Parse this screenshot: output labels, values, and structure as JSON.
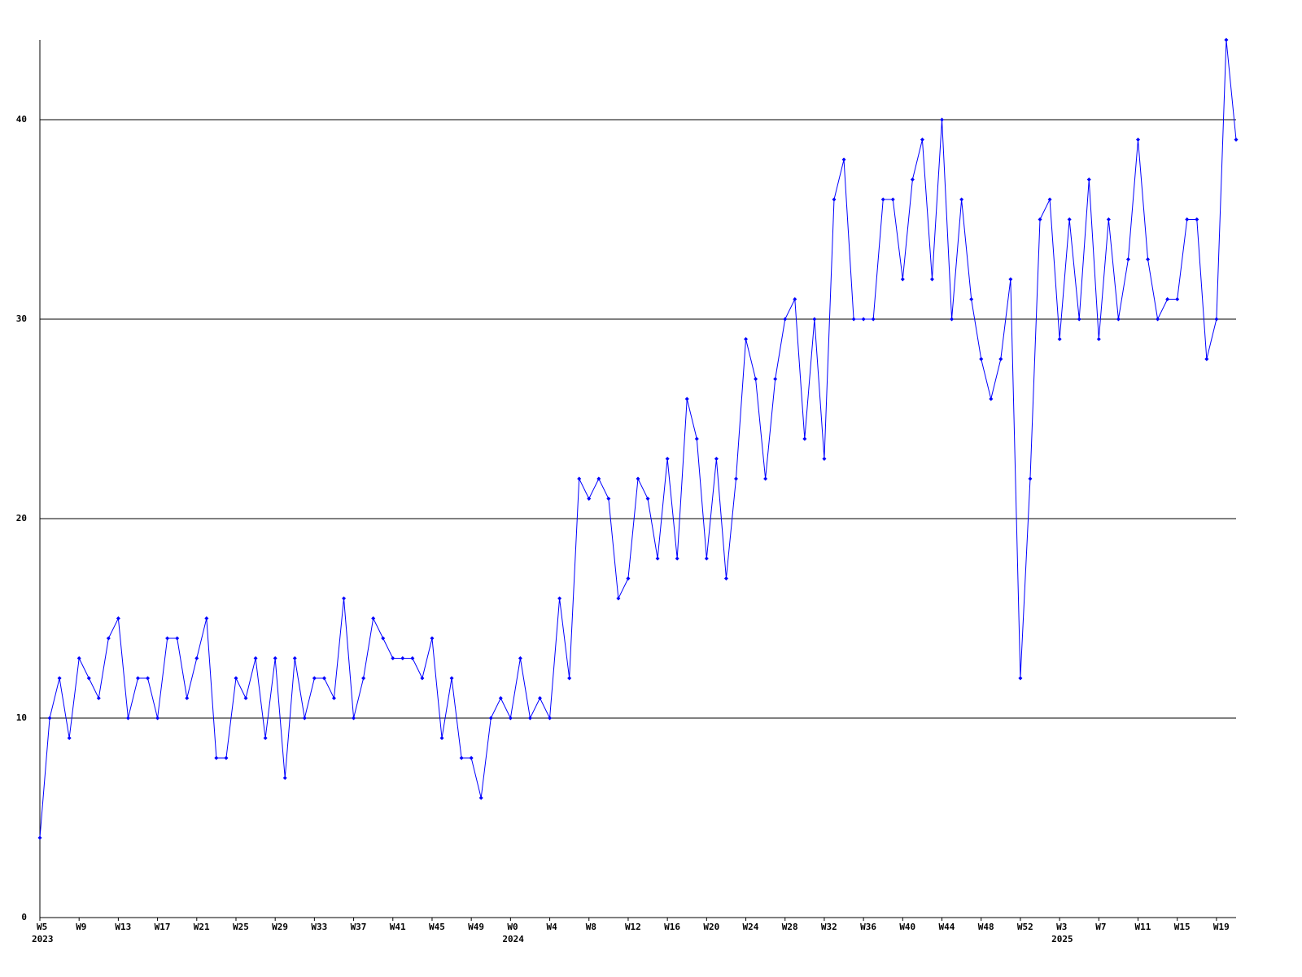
{
  "chart_data": {
    "type": "line",
    "categories": [
      "W5",
      null,
      null,
      null,
      "W9",
      null,
      null,
      null,
      "W13",
      null,
      null,
      null,
      "W17",
      null,
      null,
      null,
      "W21",
      null,
      null,
      null,
      "W25",
      null,
      null,
      null,
      "W29",
      null,
      null,
      null,
      "W33",
      null,
      null,
      null,
      "W37",
      null,
      null,
      null,
      "W41",
      null,
      null,
      null,
      "W45",
      null,
      null,
      null,
      "W49",
      null,
      null,
      null,
      "W0",
      null,
      null,
      null,
      "W4",
      null,
      null,
      null,
      "W8",
      null,
      null,
      null,
      "W12",
      null,
      null,
      null,
      "W16",
      null,
      null,
      null,
      "W20",
      null,
      null,
      null,
      "W24",
      null,
      null,
      null,
      "W28",
      null,
      null,
      null,
      "W32",
      null,
      null,
      null,
      "W36",
      null,
      null,
      null,
      "W40",
      null,
      null,
      null,
      "W44",
      null,
      null,
      null,
      "W48",
      null,
      null,
      null,
      "W52",
      null,
      null,
      null,
      "W3",
      null,
      null,
      null,
      "W7",
      null,
      null,
      null,
      "W11",
      null,
      null,
      null,
      "W15",
      null,
      null,
      null,
      "W19",
      null,
      null
    ],
    "x_group_labels": [
      "2023",
      null,
      null,
      null,
      null,
      null,
      null,
      null,
      null,
      null,
      null,
      null,
      null,
      null,
      null,
      null,
      null,
      null,
      null,
      null,
      null,
      null,
      null,
      null,
      null,
      null,
      null,
      null,
      null,
      null,
      null,
      null,
      null,
      null,
      null,
      null,
      null,
      null,
      null,
      null,
      null,
      null,
      null,
      null,
      null,
      null,
      null,
      null,
      "2024",
      null,
      null,
      null,
      null,
      null,
      null,
      null,
      null,
      null,
      null,
      null,
      null,
      null,
      null,
      null,
      null,
      null,
      null,
      null,
      null,
      null,
      null,
      null,
      null,
      null,
      null,
      null,
      null,
      null,
      null,
      null,
      null,
      null,
      null,
      null,
      null,
      null,
      null,
      null,
      null,
      null,
      null,
      null,
      null,
      null,
      null,
      null,
      null,
      null,
      null,
      null,
      null,
      null,
      null,
      null,
      "2025",
      null,
      null,
      null,
      null,
      null,
      null,
      null,
      null,
      null,
      null,
      null,
      null,
      null,
      null,
      null,
      null,
      null,
      null
    ],
    "values": [
      4,
      10,
      12,
      9,
      13,
      12,
      11,
      14,
      15,
      10,
      12,
      12,
      10,
      14,
      14,
      11,
      13,
      15,
      8,
      8,
      12,
      11,
      13,
      9,
      13,
      7,
      13,
      10,
      12,
      12,
      11,
      16,
      10,
      12,
      15,
      14,
      13,
      13,
      13,
      12,
      14,
      9,
      12,
      8,
      8,
      6,
      10,
      11,
      10,
      13,
      10,
      11,
      10,
      16,
      12,
      22,
      21,
      22,
      21,
      16,
      17,
      22,
      21,
      18,
      23,
      18,
      26,
      24,
      18,
      23,
      17,
      22,
      29,
      27,
      22,
      27,
      30,
      31,
      24,
      30,
      23,
      36,
      38,
      30,
      30,
      30,
      36,
      36,
      32,
      37,
      39,
      32,
      40,
      30,
      36,
      31,
      28,
      26,
      28,
      32,
      12,
      22,
      35,
      36,
      29,
      35,
      30,
      37,
      29,
      35,
      30,
      33,
      39,
      33,
      30,
      31,
      31,
      35,
      35,
      28,
      30,
      44,
      39
    ],
    "color": "#0000ff",
    "ylim": [
      0,
      44
    ],
    "yticks": [
      0,
      10,
      20,
      30,
      40
    ],
    "grid": true
  }
}
